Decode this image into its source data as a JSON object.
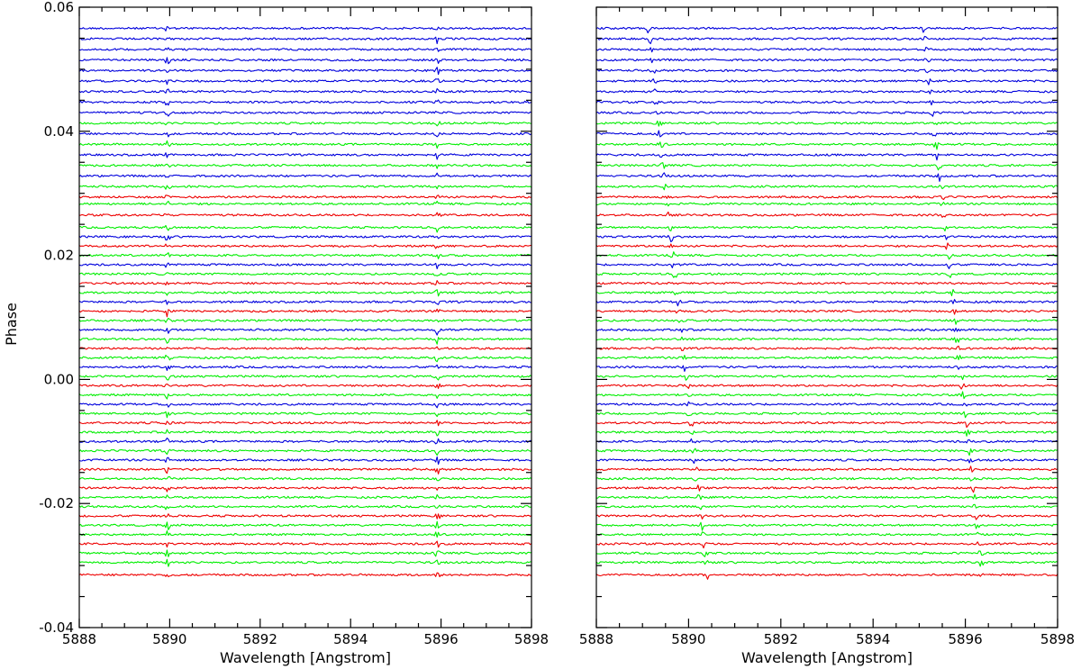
{
  "chart_data": [
    {
      "type": "line",
      "panel": "left",
      "xlabel": "Wavelength [Angstrom]",
      "ylabel": "Phase",
      "xlim": [
        5888,
        5898
      ],
      "ylim": [
        -0.04,
        0.06
      ],
      "x_ticks": [
        "5888",
        "5890",
        "5892",
        "5894",
        "5896",
        "5898"
      ],
      "y_ticks": [
        "-0.04",
        "-0.02",
        "0.00",
        "0.02",
        "0.04",
        "0.06"
      ],
      "rest_frame_lines": [
        5889.95,
        5895.92
      ],
      "line_shift_per_phase": 0
    },
    {
      "type": "line",
      "panel": "right",
      "xlabel": "Wavelength [Angstrom]",
      "ylabel": "",
      "xlim": [
        5888,
        5898
      ],
      "ylim": [
        -0.04,
        0.06
      ],
      "x_ticks": [
        "5888",
        "5890",
        "5892",
        "5894",
        "5896",
        "5898"
      ],
      "y_ticks": [],
      "rest_frame_lines": [
        5889.95,
        5895.92
      ],
      "line_shift_per_phase": -14.5
    }
  ],
  "series_colors": {
    "blue": "#0000dd",
    "green": "#00ee00",
    "red": "#ee0000"
  },
  "spectra": [
    {
      "phase": 0.0566,
      "color": "blue"
    },
    {
      "phase": 0.0549,
      "color": "blue"
    },
    {
      "phase": 0.0532,
      "color": "blue"
    },
    {
      "phase": 0.0515,
      "color": "blue"
    },
    {
      "phase": 0.0498,
      "color": "blue"
    },
    {
      "phase": 0.0481,
      "color": "blue"
    },
    {
      "phase": 0.0464,
      "color": "blue"
    },
    {
      "phase": 0.0447,
      "color": "blue"
    },
    {
      "phase": 0.043,
      "color": "blue"
    },
    {
      "phase": 0.0413,
      "color": "green"
    },
    {
      "phase": 0.0396,
      "color": "blue"
    },
    {
      "phase": 0.0379,
      "color": "green"
    },
    {
      "phase": 0.0362,
      "color": "blue"
    },
    {
      "phase": 0.0345,
      "color": "green"
    },
    {
      "phase": 0.0328,
      "color": "blue"
    },
    {
      "phase": 0.0311,
      "color": "green"
    },
    {
      "phase": 0.0294,
      "color": "red"
    },
    {
      "phase": 0.0283,
      "color": "green"
    },
    {
      "phase": 0.0265,
      "color": "red"
    },
    {
      "phase": 0.0245,
      "color": "green"
    },
    {
      "phase": 0.023,
      "color": "blue"
    },
    {
      "phase": 0.0215,
      "color": "red"
    },
    {
      "phase": 0.02,
      "color": "green"
    },
    {
      "phase": 0.0185,
      "color": "blue"
    },
    {
      "phase": 0.017,
      "color": "green"
    },
    {
      "phase": 0.0155,
      "color": "red"
    },
    {
      "phase": 0.014,
      "color": "green"
    },
    {
      "phase": 0.0125,
      "color": "blue"
    },
    {
      "phase": 0.011,
      "color": "red"
    },
    {
      "phase": 0.0095,
      "color": "green"
    },
    {
      "phase": 0.008,
      "color": "blue"
    },
    {
      "phase": 0.0065,
      "color": "green"
    },
    {
      "phase": 0.005,
      "color": "red"
    },
    {
      "phase": 0.0035,
      "color": "green"
    },
    {
      "phase": 0.002,
      "color": "blue"
    },
    {
      "phase": 0.0005,
      "color": "green"
    },
    {
      "phase": -0.001,
      "color": "red"
    },
    {
      "phase": -0.0025,
      "color": "green"
    },
    {
      "phase": -0.004,
      "color": "blue"
    },
    {
      "phase": -0.0055,
      "color": "green"
    },
    {
      "phase": -0.007,
      "color": "red"
    },
    {
      "phase": -0.0085,
      "color": "green"
    },
    {
      "phase": -0.01,
      "color": "blue"
    },
    {
      "phase": -0.0115,
      "color": "green"
    },
    {
      "phase": -0.013,
      "color": "blue"
    },
    {
      "phase": -0.0145,
      "color": "red"
    },
    {
      "phase": -0.016,
      "color": "green"
    },
    {
      "phase": -0.0175,
      "color": "red"
    },
    {
      "phase": -0.019,
      "color": "green"
    },
    {
      "phase": -0.0205,
      "color": "green"
    },
    {
      "phase": -0.022,
      "color": "red"
    },
    {
      "phase": -0.0235,
      "color": "green"
    },
    {
      "phase": -0.025,
      "color": "green"
    },
    {
      "phase": -0.0265,
      "color": "red"
    },
    {
      "phase": -0.028,
      "color": "green"
    },
    {
      "phase": -0.0295,
      "color": "green"
    },
    {
      "phase": -0.0315,
      "color": "red"
    }
  ]
}
